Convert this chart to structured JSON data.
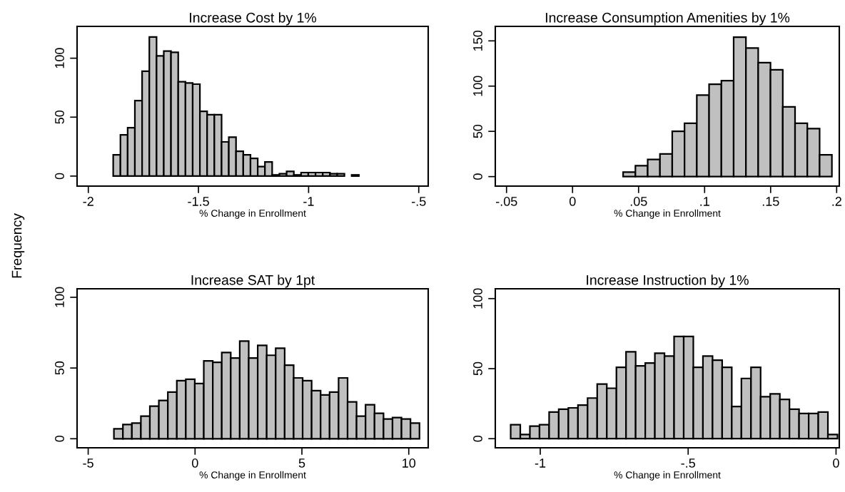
{
  "chart_data": [
    {
      "type": "histogram",
      "title": "Increase Cost by 1%",
      "xlabel": "% Change in Enrollment",
      "ylabel": "Frequency",
      "color": "#c0c0c0",
      "bins": [
        -1.887,
        -1.8542,
        -1.8214,
        -1.7886,
        -1.7558,
        -1.723,
        -1.6902,
        -1.6574,
        -1.6246,
        -1.5918,
        -1.559,
        -1.5262,
        -1.4934,
        -1.4606,
        -1.4278,
        -1.395,
        -1.3622,
        -1.3294,
        -1.2966,
        -1.2638,
        -1.231,
        -1.1982,
        -1.1654,
        -1.1326,
        -1.0998,
        -1.067,
        -1.0342,
        -1.0014,
        -0.9686,
        -0.9358,
        -0.903,
        -0.8702,
        -0.8374,
        -0.8046,
        -0.7718
      ],
      "values": [
        18,
        35,
        41,
        64,
        89,
        118,
        102,
        106,
        105,
        80,
        79,
        78,
        55,
        52,
        52,
        29,
        33,
        21,
        18,
        15,
        8,
        12,
        1,
        2,
        4,
        1,
        3,
        3,
        3,
        3,
        2,
        2,
        0,
        1
      ],
      "xlim": [
        -2.051,
        -0.457
      ],
      "xticks": [
        -2,
        {
          "value": -1.5,
          "label": "-1.5"
        },
        -1,
        {
          "value": -0.5,
          "label": "-.5"
        }
      ],
      "ylim": [
        -8.5,
        127
      ],
      "yticks": [
        0,
        50,
        100
      ],
      "grid": false,
      "legend": false
    },
    {
      "type": "histogram",
      "title": "Increase Consumption Amenities by 1%",
      "xlabel": "% Change in Enrollment",
      "color": "#c0c0c0",
      "bins": [
        0.0383,
        0.0476,
        0.0569,
        0.0662,
        0.0755,
        0.0848,
        0.0941,
        0.1034,
        0.1127,
        0.122,
        0.1313,
        0.1406,
        0.1499,
        0.1592,
        0.1685,
        0.1778,
        0.1871,
        0.1964
      ],
      "values": [
        5,
        12,
        19,
        25,
        50,
        59,
        90,
        102,
        106,
        154,
        142,
        126,
        118,
        77,
        59,
        53,
        24
      ],
      "xlim": [
        -0.0585,
        0.202
      ],
      "xticks": [
        {
          "value": -0.05,
          "label": "-.05"
        },
        0,
        {
          "value": 0.05,
          "label": ".05"
        },
        {
          "value": 0.1,
          "label": ".1"
        },
        {
          "value": 0.15,
          "label": ".15"
        },
        {
          "value": 0.2,
          "label": ".2"
        }
      ],
      "ylim": [
        -10.5,
        166
      ],
      "yticks": [
        0,
        50,
        100,
        150
      ],
      "grid": false,
      "legend": false
    },
    {
      "type": "histogram",
      "title": "Increase SAT by 1pt",
      "xlabel": "% Change in Enrollment",
      "color": "#c0c0c0",
      "bins": [
        -3.796,
        -3.3755,
        -2.955,
        -2.5345,
        -2.114,
        -1.6935,
        -1.273,
        -0.8525,
        -0.432,
        -0.0115,
        0.409,
        0.8295,
        1.25,
        1.6705,
        2.091,
        2.5115,
        2.932,
        3.3525,
        3.773,
        4.1935,
        4.614,
        5.0345,
        5.455,
        5.8755,
        6.296,
        6.7165,
        7.137,
        7.5575,
        7.978,
        8.3985,
        8.819,
        9.2395,
        9.66,
        10.0805,
        10.501
      ],
      "values": [
        7,
        10,
        11,
        16,
        23,
        27,
        33,
        41,
        42,
        39,
        55,
        54,
        61,
        57,
        69,
        57,
        66,
        59,
        64,
        52,
        43,
        41,
        34,
        31,
        33,
        43,
        26,
        16,
        24,
        18,
        14,
        15,
        14,
        11
      ],
      "xlim": [
        -5.52,
        10.91
      ],
      "xticks": [
        -5,
        0,
        5,
        10
      ],
      "ylim": [
        -6.4,
        106
      ],
      "yticks": [
        0,
        50,
        100
      ],
      "grid": false,
      "legend": false
    },
    {
      "type": "histogram",
      "title": "Increase Instruction by 1%",
      "xlabel": "% Change in Enrollment",
      "color": "#c0c0c0",
      "bins": [
        -1.1,
        -1.0675,
        -1.035,
        -1.0025,
        -0.97,
        -0.9375,
        -0.905,
        -0.8725,
        -0.84,
        -0.8075,
        -0.775,
        -0.7425,
        -0.71,
        -0.6775,
        -0.645,
        -0.6125,
        -0.58,
        -0.5475,
        -0.515,
        -0.4825,
        -0.45,
        -0.4175,
        -0.385,
        -0.3525,
        -0.32,
        -0.2875,
        -0.255,
        -0.2225,
        -0.19,
        -0.1575,
        -0.125,
        -0.0925,
        -0.06,
        -0.0275,
        0.005
      ],
      "values": [
        10,
        3,
        9,
        10,
        19,
        21,
        22,
        24,
        29,
        39,
        36,
        51,
        62,
        52,
        54,
        61,
        59,
        73,
        73,
        51,
        59,
        56,
        51,
        23,
        43,
        51,
        30,
        32,
        28,
        21,
        18,
        18,
        19,
        3
      ],
      "xlim": [
        -1.152,
        0.011
      ],
      "xticks": [
        -1,
        {
          "value": -0.5,
          "label": "-.5"
        },
        0
      ],
      "ylim": [
        -6.5,
        107
      ],
      "yticks": [
        0,
        50,
        100
      ],
      "grid": false,
      "legend": false
    }
  ]
}
